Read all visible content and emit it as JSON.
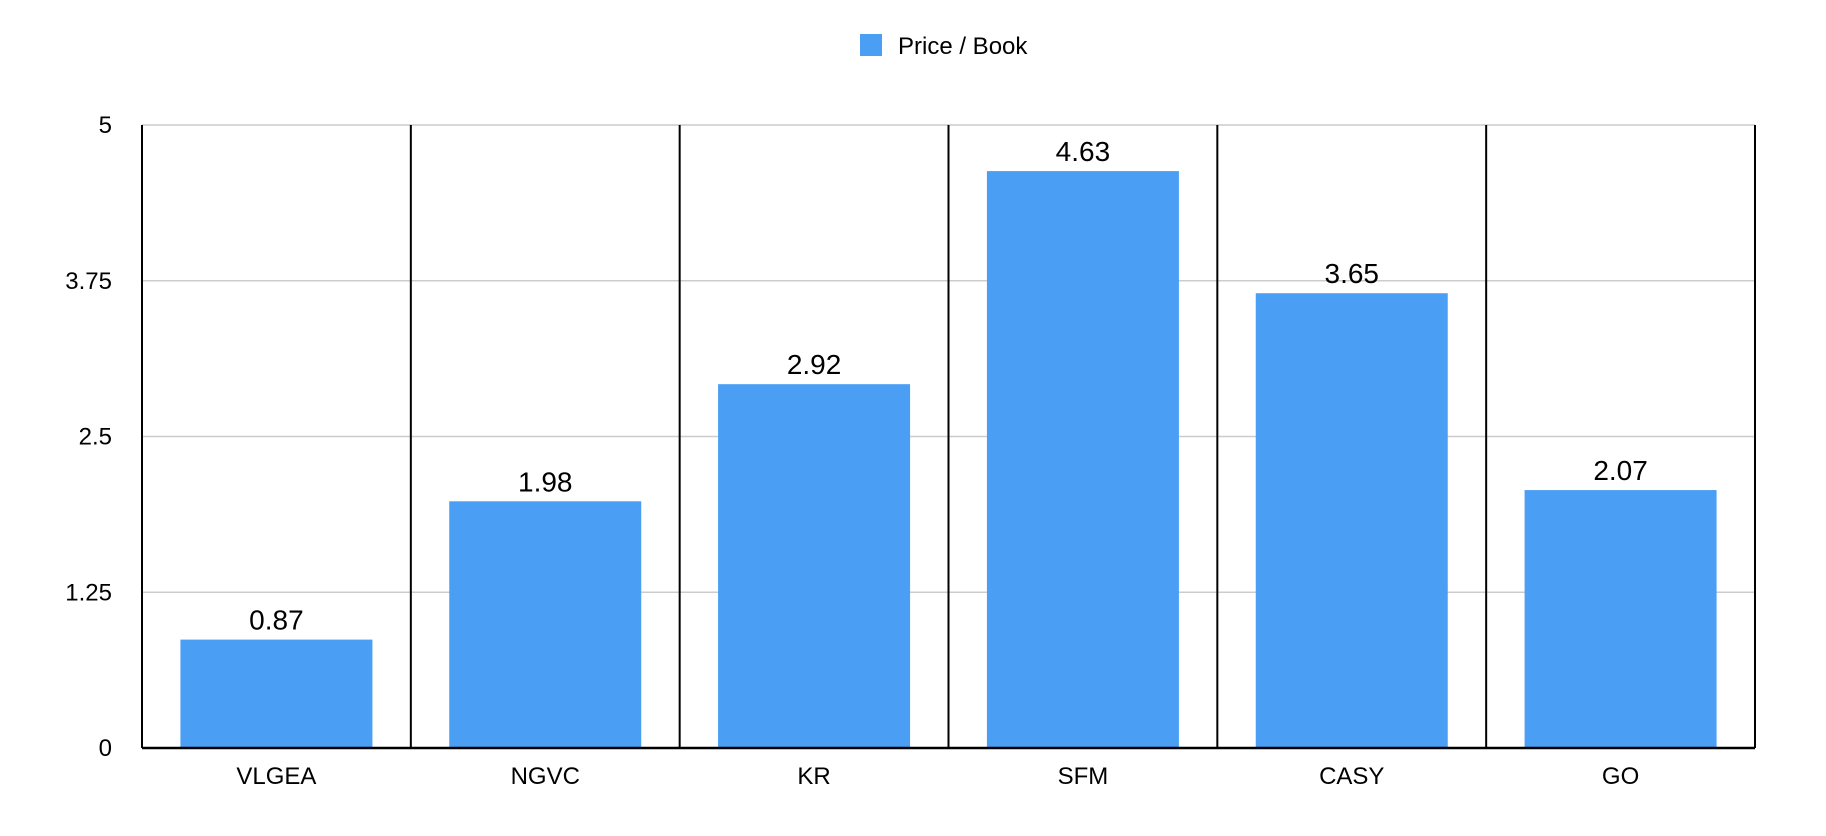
{
  "chart_data": {
    "type": "bar",
    "categories": [
      "VLGEA",
      "NGVC",
      "KR",
      "SFM",
      "CASY",
      "GO"
    ],
    "series": [
      {
        "name": "Price / Book",
        "values": [
          0.87,
          1.98,
          2.92,
          4.63,
          3.65,
          2.07
        ],
        "color": "#4a9ff5"
      }
    ],
    "data_labels": [
      "0.87",
      "1.98",
      "2.92",
      "4.63",
      "3.65",
      "2.07"
    ],
    "ylim": [
      0,
      5
    ],
    "yticks": [
      0,
      1.25,
      2.5,
      3.75,
      5
    ],
    "ytick_labels": [
      "0",
      "1.25",
      "2.5",
      "3.75",
      "5"
    ],
    "title": "",
    "xlabel": "",
    "ylabel": "",
    "grid": true,
    "legend_position": "top-center",
    "colors": {
      "bar": "#4a9ff5",
      "grid": "#cccccc",
      "axis": "#000000"
    }
  }
}
